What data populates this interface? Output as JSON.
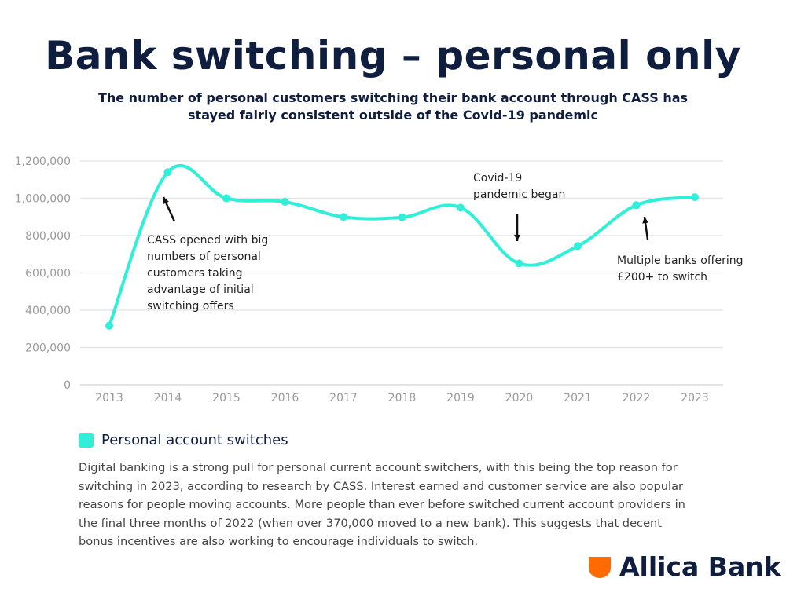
{
  "header": {
    "title": "Bank switching – personal only",
    "subtitle": "The number of personal customers switching their bank account through CASS has stayed fairly consistent outside of the Covid-19 pandemic"
  },
  "chart_data": {
    "type": "line",
    "title": "",
    "xlabel": "",
    "ylabel": "",
    "categories": [
      "2013",
      "2014",
      "2015",
      "2016",
      "2017",
      "2018",
      "2019",
      "2020",
      "2021",
      "2022",
      "2023"
    ],
    "series": [
      {
        "name": "Personal account switches",
        "color": "#2ef0d8",
        "values": [
          317000,
          1140000,
          1000000,
          981000,
          900000,
          898000,
          950000,
          651000,
          744000,
          963000,
          1006000
        ]
      }
    ],
    "ylim": [
      0,
      1200000
    ],
    "yticks": [
      0,
      200000,
      400000,
      600000,
      800000,
      1000000,
      1200000
    ],
    "ytick_labels": [
      "0",
      "200,000",
      "400,000",
      "600,000",
      "800,000",
      "1,000,000",
      "1,200,000"
    ],
    "grid": true,
    "smooth": true,
    "legend": "bottom-left",
    "annotations": [
      {
        "text": "CASS opened with big numbers of personal customers taking advantage of initial switching offers",
        "lines": [
          "CASS opened with big",
          "numbers of personal",
          "customers taking",
          "advantage of initial",
          "switching offers"
        ],
        "category": "2014"
      },
      {
        "text": "Covid-19 pandemic began",
        "lines": [
          "Covid-19",
          "pandemic began"
        ],
        "category": "2020"
      },
      {
        "text": "Multiple banks offering £200+ to switch",
        "lines": [
          "Multiple banks offering",
          "£200+ to switch"
        ],
        "category": "2022"
      }
    ]
  },
  "legend": {
    "label": "Personal account switches"
  },
  "description": "Digital banking is a strong pull for personal current account switchers, with this being the top reason for switching in 2023, according to research by CASS. Interest earned and customer service are also popular reasons for people moving accounts. More people than ever before switched current account providers in the final three months of 2022 (when over 370,000 moved to a new bank). This suggests that decent bonus incentives are also working to encourage individuals to switch.",
  "logo": {
    "text": "Allica Bank",
    "color": "#ff6b00"
  }
}
